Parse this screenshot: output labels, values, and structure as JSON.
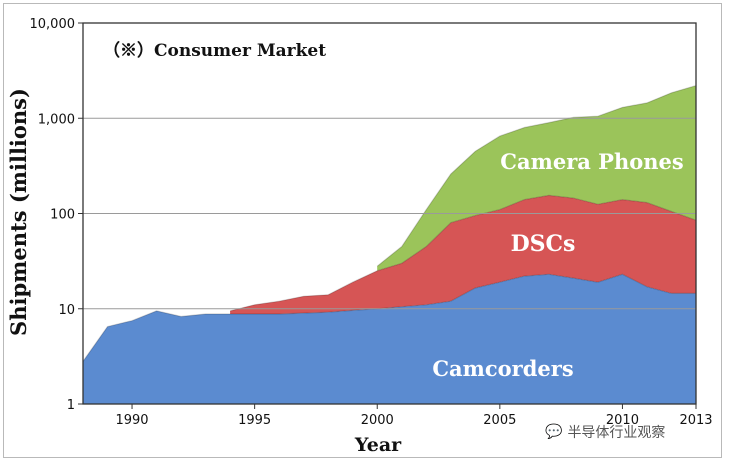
{
  "chart_data": {
    "type": "area",
    "stacked": true,
    "yscale": "log",
    "title": "（※）Consumer Market",
    "xlabel": "Year",
    "ylabel": "Shipments (millions)",
    "xlim": [
      1988,
      2013
    ],
    "ylim": [
      1,
      10000
    ],
    "x_ticks": [
      1990,
      1995,
      2000,
      2005,
      2010,
      2013
    ],
    "x_tick_labels": [
      "1990",
      "1995",
      "2000",
      "2005",
      "2010",
      "2013"
    ],
    "y_ticks": [
      1,
      10,
      100,
      1000,
      10000
    ],
    "y_tick_labels": [
      "1",
      "10",
      "100",
      "1,000",
      "10,000"
    ],
    "grid": "horizontal",
    "years": [
      1988,
      1989,
      1990,
      1991,
      1992,
      1993,
      1994,
      1995,
      1996,
      1997,
      1998,
      1999,
      2000,
      2001,
      2002,
      2003,
      2004,
      2005,
      2006,
      2007,
      2008,
      2009,
      2010,
      2011,
      2012,
      2013
    ],
    "series": [
      {
        "name": "Camcorders",
        "color": "#5b8bd0",
        "cumulative": [
          2.8,
          6.5,
          7.5,
          9.5,
          8.3,
          8.8,
          8.8,
          8.8,
          8.8,
          9.0,
          9.2,
          9.6,
          10.0,
          10.5,
          11.0,
          12.0,
          16.5,
          19.0,
          22.0,
          23.0,
          21.0,
          19.0,
          23.0,
          17.0,
          14.5,
          14.5
        ]
      },
      {
        "name": "DSCs",
        "color": "#d65555",
        "cumulative": [
          null,
          null,
          null,
          null,
          null,
          null,
          9.5,
          11.0,
          12.0,
          13.5,
          14.0,
          19.0,
          25.0,
          30.0,
          45.0,
          80.0,
          95.0,
          110.0,
          140.0,
          155.0,
          145.0,
          125.0,
          140.0,
          130.0,
          105.0,
          85.0
        ]
      },
      {
        "name": "Camera Phones",
        "color": "#9bc45a",
        "cumulative": [
          null,
          null,
          null,
          null,
          null,
          null,
          null,
          null,
          null,
          null,
          null,
          null,
          28.0,
          45.0,
          110.0,
          260.0,
          450.0,
          650.0,
          800.0,
          900.0,
          1020.0,
          1050.0,
          1300.0,
          1450.0,
          1850.0,
          2200.0
        ]
      }
    ],
    "area_labels": [
      "Camera Phones",
      "DSCs",
      "Camcorders"
    ]
  },
  "watermark": {
    "icon": "wechat-icon",
    "text": "半导体行业观察"
  }
}
